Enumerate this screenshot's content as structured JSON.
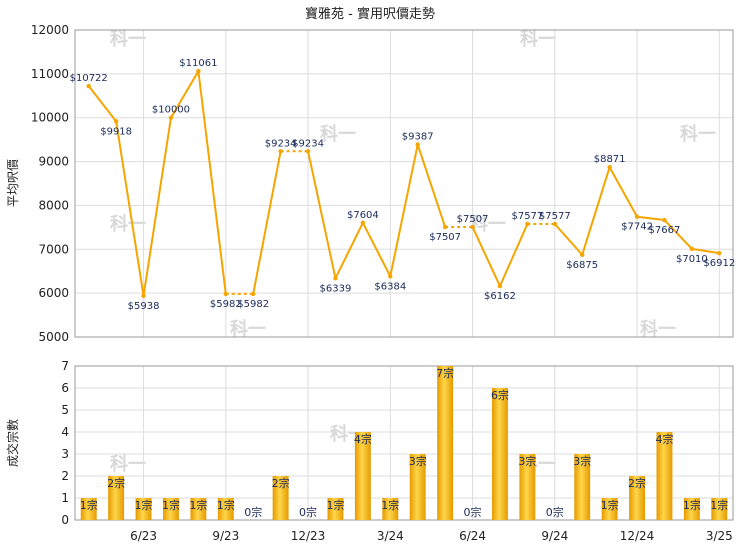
{
  "chart_data": {
    "title": "寶雅苑 - 實用呎價走勢",
    "charts": [
      {
        "type": "line",
        "ylabel": "平均呎價",
        "ylim": [
          5000,
          12000
        ],
        "yticks": [
          5000,
          6000,
          7000,
          8000,
          9000,
          10000,
          11000,
          12000
        ],
        "values": [
          10722,
          9918,
          5938,
          10000,
          11061,
          5982,
          5982,
          9234,
          9234,
          6339,
          7604,
          6384,
          9387,
          7507,
          7507,
          6162,
          7577,
          7577,
          6875,
          8871,
          7742,
          7667,
          7010,
          6912
        ],
        "labels": [
          "$10722",
          "$9918",
          "$5938",
          "$10000",
          "$11061",
          "$5982",
          "$5982",
          "$9234",
          "$9234",
          "$6339",
          "$7604",
          "$6384",
          "$9387",
          "$7507",
          "$7507",
          "$6162",
          "$7577",
          "$7577",
          "$6875",
          "$8871",
          "$7742",
          "$7667",
          "$7010",
          "$6912"
        ],
        "dashed_after": [
          5,
          7,
          13,
          16
        ],
        "color": "#f5a500"
      },
      {
        "type": "bar",
        "ylabel": "成交宗數",
        "ylim": [
          0,
          7
        ],
        "yticks": [
          0,
          1,
          2,
          3,
          4,
          5,
          6,
          7
        ],
        "values": [
          1,
          2,
          1,
          1,
          1,
          1,
          0,
          2,
          0,
          1,
          4,
          1,
          3,
          7,
          0,
          6,
          3,
          0,
          3,
          1,
          2,
          4,
          1,
          1
        ],
        "labels": [
          "1宗",
          "2宗",
          "1宗",
          "1宗",
          "1宗",
          "1宗",
          "0宗",
          "2宗",
          "0宗",
          "1宗",
          "4宗",
          "1宗",
          "3宗",
          "7宗",
          "0宗",
          "6宗",
          "3宗",
          "0宗",
          "3宗",
          "1宗",
          "2宗",
          "4宗",
          "1宗",
          "1宗"
        ],
        "xticks": [
          {
            "index": 2,
            "label": "6/23"
          },
          {
            "index": 5,
            "label": "9/23"
          },
          {
            "index": 8,
            "label": "12/23"
          },
          {
            "index": 11,
            "label": "3/24"
          },
          {
            "index": 14,
            "label": "6/24"
          },
          {
            "index": 17,
            "label": "9/24"
          },
          {
            "index": 20,
            "label": "12/24"
          },
          {
            "index": 23,
            "label": "3/25"
          }
        ],
        "color": "#f5b000"
      }
    ],
    "grid": true,
    "watermark": "科一"
  }
}
